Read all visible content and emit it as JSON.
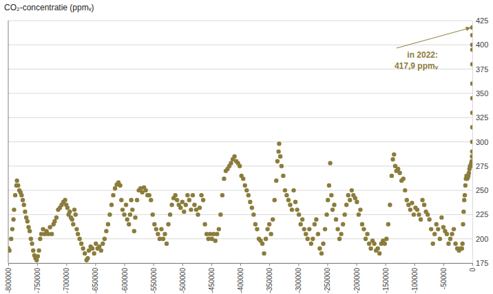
{
  "chart_data": {
    "type": "scatter",
    "title": "CO₂-concentratie (ppmᵥ)",
    "color": "#8b7c3c",
    "marker": "circle",
    "grid": true,
    "annotation": {
      "text": [
        "in 2022:",
        "417,9 ppmᵥ"
      ],
      "x": 0,
      "y": 417.9
    },
    "xlim": [
      -800000,
      0
    ],
    "xticks": [
      -800000,
      -750000,
      -700000,
      -650000,
      -600000,
      -550000,
      -500000,
      -450000,
      -400000,
      -350000,
      -300000,
      -250000,
      -200000,
      -150000,
      -100000,
      -50000,
      0
    ],
    "ylim": [
      175,
      425
    ],
    "yticks": [
      175,
      200,
      225,
      250,
      275,
      300,
      325,
      350,
      375,
      400,
      425
    ],
    "x": [
      -800000,
      -798000,
      -795000,
      -793000,
      -791000,
      -790000,
      -788000,
      -786000,
      -785000,
      -783000,
      -781000,
      -779000,
      -777000,
      -775000,
      -773000,
      -771000,
      -769000,
      -767000,
      -765000,
      -763000,
      -761000,
      -759000,
      -757000,
      -755000,
      -753000,
      -751000,
      -749000,
      -747000,
      -745000,
      -743000,
      -740000,
      -737000,
      -734000,
      -731000,
      -728000,
      -725000,
      -722000,
      -720000,
      -717000,
      -714000,
      -711000,
      -708000,
      -705000,
      -702000,
      -700000,
      -698000,
      -696000,
      -694000,
      -692000,
      -690000,
      -688000,
      -686000,
      -684000,
      -682000,
      -680000,
      -677000,
      -674000,
      -671000,
      -668000,
      -665000,
      -663000,
      -661000,
      -658000,
      -655000,
      -652000,
      -649000,
      -646000,
      -643000,
      -640000,
      -637000,
      -634000,
      -631000,
      -628000,
      -625000,
      -622000,
      -619000,
      -616000,
      -613000,
      -610000,
      -607000,
      -605000,
      -603000,
      -600000,
      -597000,
      -595000,
      -592000,
      -590000,
      -588000,
      -586000,
      -583000,
      -581000,
      -578000,
      -575000,
      -572000,
      -569000,
      -566000,
      -563000,
      -560000,
      -557000,
      -554000,
      -551000,
      -548000,
      -545000,
      -542000,
      -539000,
      -536000,
      -533000,
      -530000,
      -527000,
      -524000,
      -521000,
      -518000,
      -515000,
      -512000,
      -509000,
      -506000,
      -503000,
      -500000,
      -497000,
      -494000,
      -491000,
      -488000,
      -485000,
      -482000,
      -479000,
      -476000,
      -473000,
      -470000,
      -467000,
      -464000,
      -461000,
      -458000,
      -455000,
      -452000,
      -449000,
      -446000,
      -443000,
      -440000,
      -437000,
      -434000,
      -431000,
      -428000,
      -425000,
      -422000,
      -419000,
      -416000,
      -413000,
      -410000,
      -407000,
      -404000,
      -401000,
      -398000,
      -395000,
      -392000,
      -389000,
      -386000,
      -383000,
      -380000,
      -377000,
      -374000,
      -371000,
      -368000,
      -365000,
      -362000,
      -359000,
      -356000,
      -353000,
      -350000,
      -347000,
      -344000,
      -341000,
      -338000,
      -336000,
      -334000,
      -333000,
      -331000,
      -329000,
      -326000,
      -323000,
      -320000,
      -317000,
      -314000,
      -311000,
      -308000,
      -305000,
      -302000,
      -299000,
      -296000,
      -293000,
      -290000,
      -287000,
      -284000,
      -281000,
      -278000,
      -275000,
      -272000,
      -269000,
      -266000,
      -263000,
      -260000,
      -257000,
      -254000,
      -251000,
      -249000,
      -247000,
      -245000,
      -243000,
      -241000,
      -238000,
      -235000,
      -232000,
      -229000,
      -226000,
      -223000,
      -220000,
      -217000,
      -214000,
      -211000,
      -208000,
      -205000,
      -202000,
      -199000,
      -196000,
      -193000,
      -190000,
      -187000,
      -184000,
      -181000,
      -178000,
      -175000,
      -172000,
      -169000,
      -166000,
      -163000,
      -160000,
      -157000,
      -154000,
      -151000,
      -148000,
      -145000,
      -142000,
      -139000,
      -137000,
      -135000,
      -133000,
      -131000,
      -128000,
      -125000,
      -122000,
      -119000,
      -116000,
      -113000,
      -110000,
      -107000,
      -104000,
      -101000,
      -98000,
      -95000,
      -92000,
      -89000,
      -86000,
      -83000,
      -80000,
      -77000,
      -74000,
      -71000,
      -68000,
      -65000,
      -62000,
      -59000,
      -56000,
      -53000,
      -50000,
      -47000,
      -44000,
      -41000,
      -38000,
      -35000,
      -32000,
      -29000,
      -26000,
      -23000,
      -20000,
      -18000,
      -17000,
      -16000,
      -15000,
      -14000,
      -13000,
      -12000,
      -11000,
      -10000,
      -9000,
      -8000,
      -7000,
      -6000,
      -5000,
      -4000,
      -3000,
      -2000,
      -1000,
      -500,
      -200,
      -100,
      -60,
      -40,
      -30,
      -20,
      -10,
      -5,
      -3,
      -1,
      0
    ],
    "values": [
      190,
      188,
      200,
      210,
      220,
      230,
      245,
      255,
      260,
      255,
      250,
      248,
      245,
      240,
      235,
      228,
      222,
      218,
      212,
      208,
      200,
      195,
      188,
      183,
      180,
      178,
      182,
      188,
      200,
      205,
      210,
      205,
      208,
      205,
      212,
      205,
      215,
      218,
      222,
      230,
      232,
      235,
      238,
      240,
      235,
      232,
      225,
      228,
      222,
      220,
      215,
      230,
      225,
      210,
      205,
      200,
      195,
      190,
      185,
      178,
      180,
      188,
      192,
      190,
      185,
      195,
      190,
      192,
      188,
      195,
      200,
      208,
      215,
      225,
      235,
      245,
      252,
      256,
      258,
      255,
      240,
      230,
      225,
      235,
      220,
      215,
      225,
      240,
      230,
      208,
      222,
      240,
      250,
      252,
      248,
      253,
      250,
      245,
      245,
      240,
      225,
      215,
      210,
      205,
      200,
      210,
      200,
      205,
      195,
      215,
      225,
      235,
      242,
      245,
      240,
      235,
      232,
      238,
      228,
      235,
      245,
      240,
      230,
      245,
      235,
      230,
      225,
      232,
      245,
      240,
      215,
      205,
      200,
      205,
      200,
      205,
      198,
      205,
      210,
      225,
      245,
      262,
      270,
      272,
      275,
      278,
      282,
      285,
      280,
      278,
      275,
      265,
      262,
      255,
      250,
      245,
      238,
      232,
      225,
      215,
      210,
      200,
      198,
      195,
      185,
      200,
      210,
      215,
      205,
      220,
      240,
      260,
      280,
      290,
      298,
      285,
      275,
      265,
      250,
      245,
      240,
      235,
      230,
      250,
      238,
      230,
      225,
      215,
      220,
      210,
      205,
      200,
      210,
      195,
      200,
      215,
      220,
      205,
      190,
      185,
      195,
      210,
      225,
      240,
      255,
      278,
      245,
      230,
      235,
      220,
      210,
      200,
      205,
      215,
      225,
      235,
      245,
      240,
      250,
      245,
      242,
      238,
      225,
      230,
      215,
      210,
      200,
      205,
      195,
      190,
      198,
      195,
      188,
      190,
      185,
      195,
      198,
      195,
      200,
      215,
      235,
      265,
      282,
      287,
      275,
      270,
      272,
      268,
      260,
      262,
      250,
      240,
      235,
      230,
      237,
      225,
      232,
      230,
      225,
      220,
      240,
      235,
      228,
      225,
      220,
      210,
      195,
      205,
      215,
      210,
      200,
      222,
      212,
      208,
      205,
      195,
      200,
      205,
      210,
      195,
      190,
      188,
      190,
      190,
      195,
      215,
      228,
      240,
      245,
      255,
      262,
      265,
      262,
      263,
      265,
      268,
      272,
      275,
      275,
      278,
      280,
      285,
      290,
      300,
      315,
      330,
      345,
      360,
      380,
      395,
      400,
      410,
      417.9
    ]
  }
}
